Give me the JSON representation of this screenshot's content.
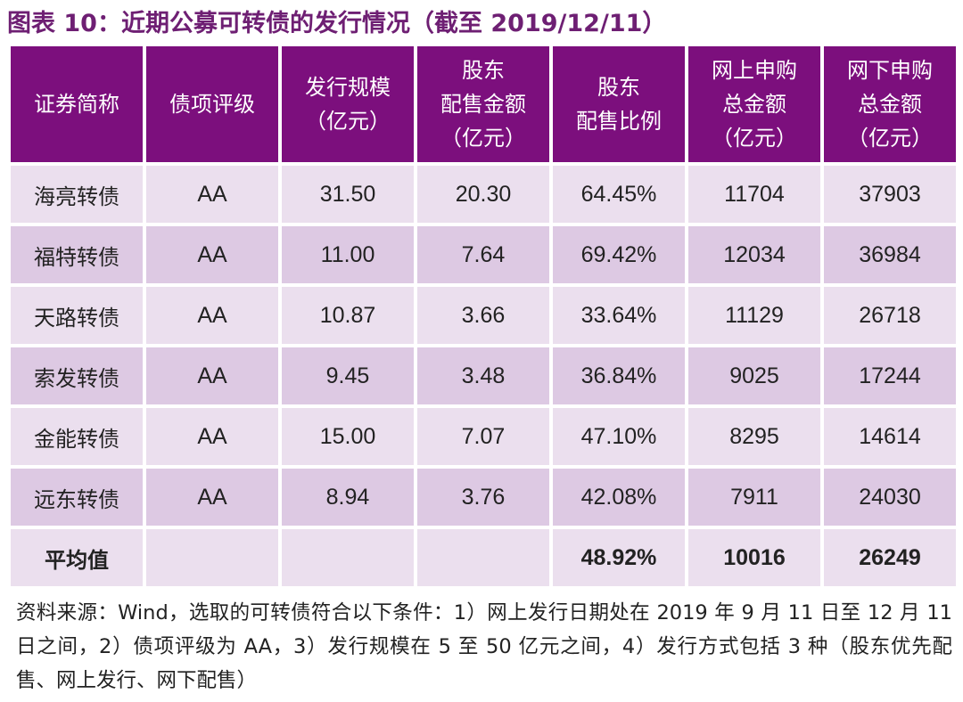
{
  "title": "图表 10：近期公募可转债的发行情况（截至 2019/12/11）",
  "headers": [
    [
      "证券简称"
    ],
    [
      "债项评级"
    ],
    [
      "发行规模",
      "（亿元）"
    ],
    [
      "股东",
      "配售金额",
      "（亿元）"
    ],
    [
      "股东",
      "配售比例"
    ],
    [
      "网上申购",
      "总金额",
      "（亿元）"
    ],
    [
      "网下申购",
      "总金额",
      "（亿元）"
    ]
  ],
  "rows": [
    [
      "海亮转债",
      "AA",
      "31.50",
      "20.30",
      "64.45%",
      "11704",
      "37903"
    ],
    [
      "福特转债",
      "AA",
      "11.00",
      "7.64",
      "69.42%",
      "12034",
      "36984"
    ],
    [
      "天路转债",
      "AA",
      "10.87",
      "3.66",
      "33.64%",
      "11129",
      "26718"
    ],
    [
      "索发转债",
      "AA",
      "9.45",
      "3.48",
      "36.84%",
      "9025",
      "17244"
    ],
    [
      "金能转债",
      "AA",
      "15.00",
      "7.07",
      "47.10%",
      "8295",
      "14614"
    ],
    [
      "远东转债",
      "AA",
      "8.94",
      "3.76",
      "42.08%",
      "7911",
      "24030"
    ]
  ],
  "average_row": [
    "平均值",
    "",
    "",
    "",
    "48.92%",
    "10016",
    "26249"
  ],
  "source": "资料来源：Wind，选取的可转债符合以下条件：1）网上发行日期处在 2019 年 9 月 11 日至 12 月 11 日之间，2）债项评级为 AA，3）发行规模在 5 至 50 亿元之间，4）发行方式包括 3 种（股东优先配售、网上发行、网下配售）",
  "colors": {
    "header_bg": "#7c0f7d",
    "title": "#6e1f73",
    "row_light": "#ebdfee",
    "row_dark": "#ddc9e3"
  }
}
